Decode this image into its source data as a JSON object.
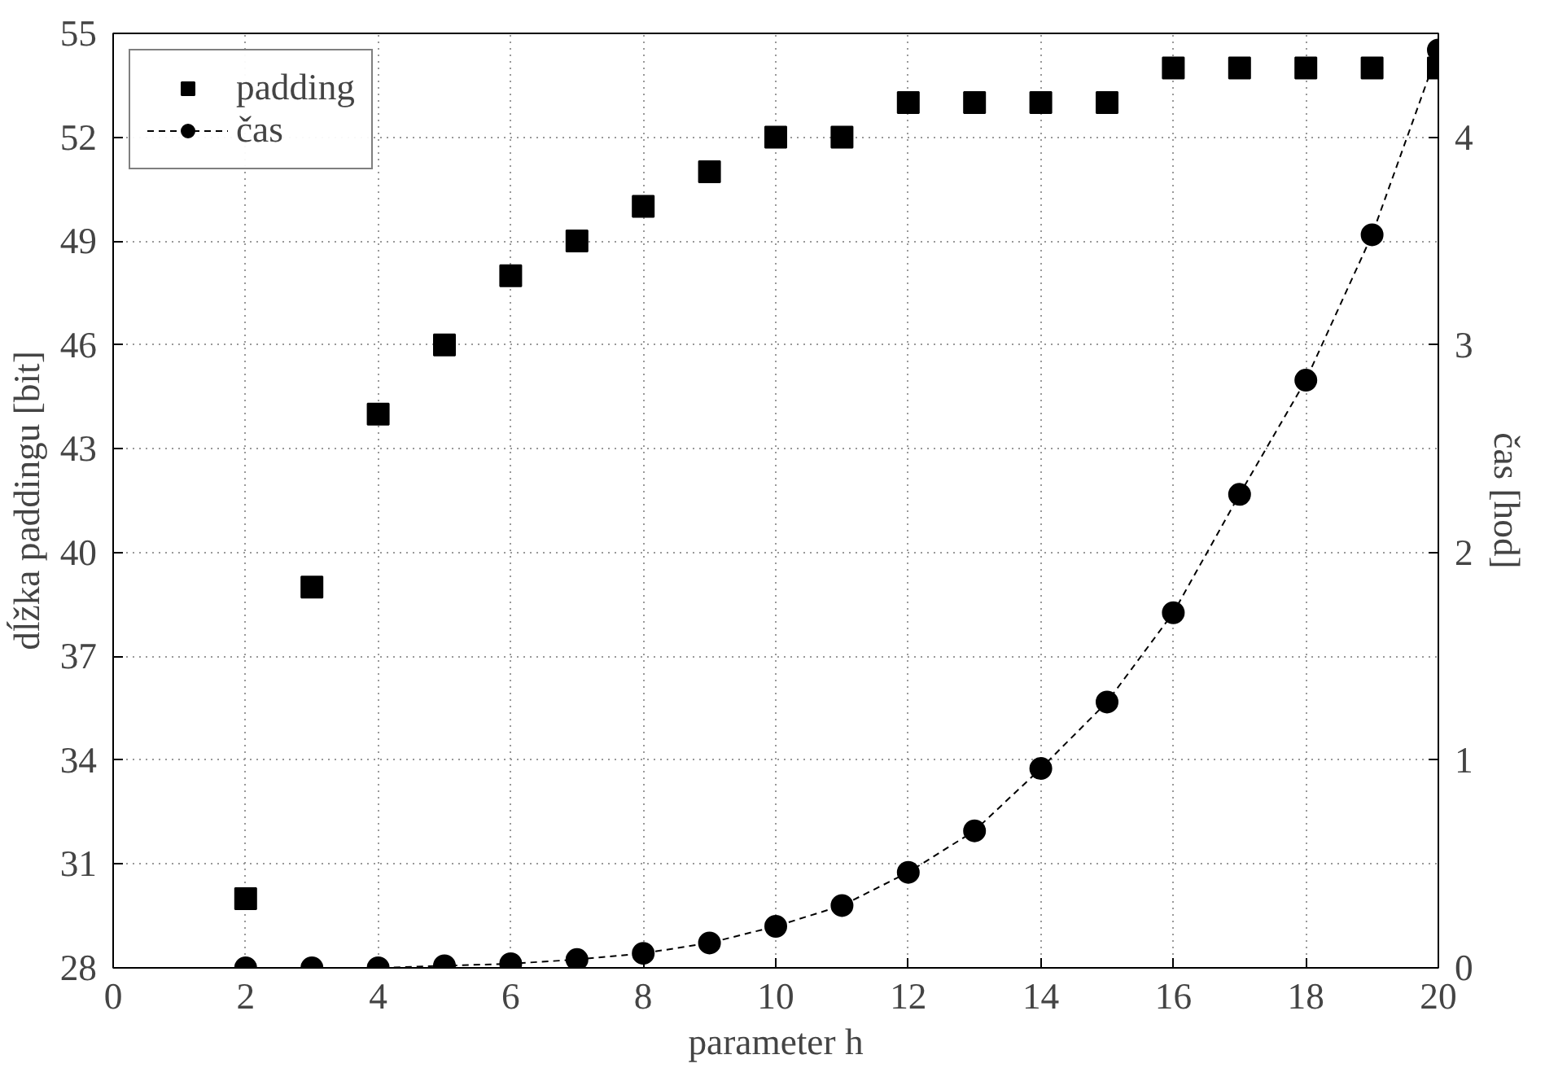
{
  "chart_data": {
    "type": "scatter",
    "xlabel": "parameter h",
    "ylabel": "dĺžka paddingu [bit]",
    "y2label": "čas [hod]",
    "xlim": [
      0,
      20
    ],
    "xticks": [
      0,
      2,
      4,
      6,
      8,
      10,
      12,
      14,
      16,
      18,
      20
    ],
    "ylim": [
      28,
      55
    ],
    "yticks": [
      28,
      31,
      34,
      37,
      40,
      43,
      46,
      49,
      52,
      55
    ],
    "y2lim": [
      0,
      4.5
    ],
    "y2ticks": [
      0,
      1,
      2,
      3,
      4
    ],
    "grid": true,
    "legend": "top left",
    "series": [
      {
        "name": "padding",
        "marker": "square",
        "color": "#000000",
        "x": [
          2,
          3,
          4,
          5,
          6,
          7,
          8,
          9,
          10,
          11,
          12,
          13,
          14,
          15,
          16,
          17,
          18,
          19,
          20
        ],
        "values": [
          30,
          39,
          44,
          46,
          48,
          49,
          50,
          51,
          52,
          52,
          53,
          53,
          53,
          53,
          54,
          54,
          54,
          54,
          54
        ]
      },
      {
        "name": "čas",
        "type": "line",
        "marker": "circle",
        "line_style": "dashed",
        "axis": "y2",
        "color": "#000000",
        "x": [
          2,
          3,
          4,
          5,
          6,
          7,
          8,
          9,
          10,
          11,
          12,
          13,
          14,
          15,
          16,
          17,
          18,
          19,
          20
        ],
        "values": [
          0,
          0,
          0,
          0.01,
          0.02,
          0.04,
          0.07,
          0.12,
          0.2,
          0.3,
          0.46,
          0.66,
          0.96,
          1.28,
          1.71,
          2.28,
          2.83,
          3.53,
          4.42
        ]
      }
    ]
  }
}
